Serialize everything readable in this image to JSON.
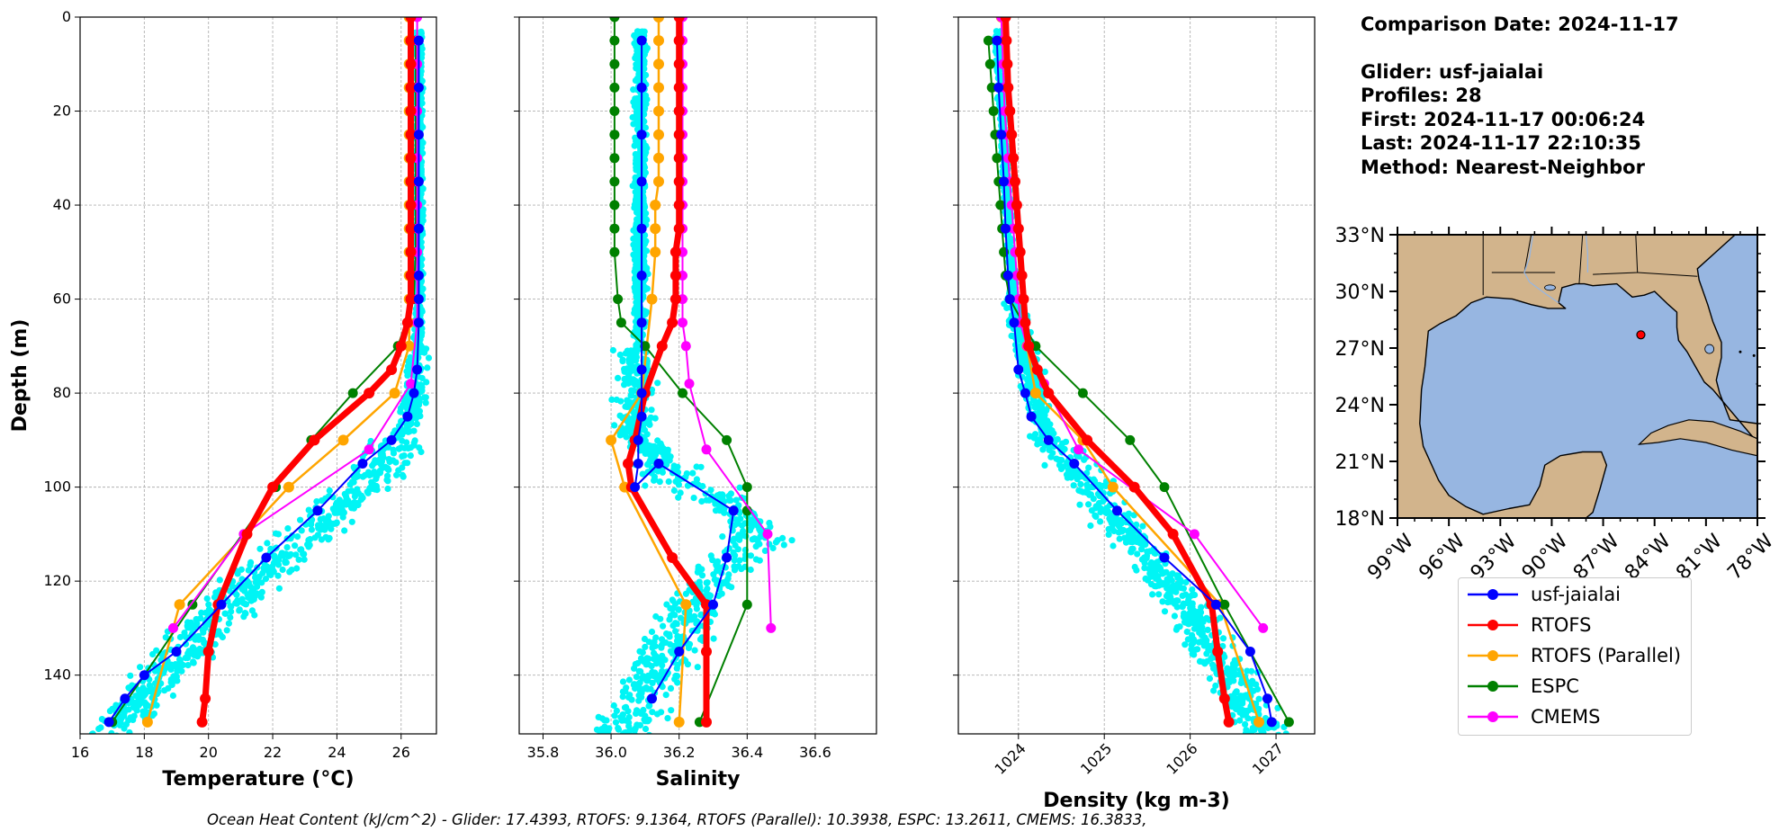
{
  "info": {
    "comparison_date": "Comparison Date: 2024-11-17",
    "glider": "Glider: usf-jaialai",
    "profiles": "Profiles: 28",
    "first": "First: 2024-11-17 00:06:24",
    "last": "Last: 2024-11-17 22:10:35",
    "method": "Method: Nearest-Neighbor"
  },
  "footer": "Ocean Heat Content (kJ/cm^2) - Glider: 17.4393,  RTOFS: 9.1364,  RTOFS (Parallel): 10.3938,  ESPC: 13.2611,  CMEMS: 16.3833,",
  "colors": {
    "glider_scatter": "#00f5f5",
    "usf_jaialai": "#0000ff",
    "rtofs": "#ff0000",
    "rtofs_parallel": "#ffa500",
    "espc": "#008000",
    "cmems": "#ff00ff",
    "land": "#d2b48c",
    "ocean": "#97b6e1"
  },
  "legend": [
    {
      "name": "usf-jaialai",
      "color": "#0000ff"
    },
    {
      "name": "RTOFS",
      "color": "#ff0000"
    },
    {
      "name": "RTOFS (Parallel)",
      "color": "#ffa500"
    },
    {
      "name": "ESPC",
      "color": "#008000"
    },
    {
      "name": "CMEMS",
      "color": "#ff00ff"
    }
  ],
  "chart_data": [
    {
      "type": "line",
      "xlabel": "Temperature (°C)",
      "ylabel": "Depth (m)",
      "xlim": [
        16.0,
        27.1
      ],
      "ylim": [
        152.5,
        0
      ],
      "xticks": [
        "16",
        "18",
        "20",
        "22",
        "24",
        "26"
      ],
      "xtick_values": [
        16,
        18,
        20,
        22,
        24,
        26
      ],
      "yticks": [
        "0",
        "20",
        "40",
        "60",
        "80",
        "100",
        "120",
        "140"
      ],
      "ytick_values": [
        0,
        20,
        40,
        60,
        80,
        100,
        120,
        140
      ],
      "grid": true,
      "series": [
        {
          "name": "usf-jaialai",
          "x": [
            26.55,
            26.55,
            26.55,
            26.55,
            26.55,
            26.55,
            26.55,
            26.55,
            26.5,
            26.4,
            26.2,
            25.7,
            24.8,
            23.4,
            21.8,
            20.4,
            19.0,
            18.0,
            17.4,
            16.9
          ],
          "y": [
            5,
            15,
            25,
            35,
            45,
            55,
            60,
            65,
            75,
            80,
            85,
            90,
            95,
            105,
            115,
            125,
            135,
            140,
            145,
            150
          ]
        },
        {
          "name": "RTOFS",
          "x": [
            26.3,
            26.3,
            26.3,
            26.3,
            26.3,
            26.3,
            26.3,
            26.3,
            26.3,
            26.3,
            26.3,
            26.3,
            26.3,
            26.2,
            26.0,
            25.7,
            25.0,
            23.3,
            22.0,
            21.2,
            20.3,
            20.0,
            19.9,
            19.8
          ],
          "y": [
            0,
            5,
            10,
            15,
            20,
            25,
            30,
            35,
            40,
            45,
            50,
            55,
            60,
            65,
            70,
            75,
            80,
            90,
            100,
            110,
            125,
            135,
            145,
            150
          ]
        },
        {
          "name": "RTOFS (Parallel)",
          "x": [
            26.25,
            26.25,
            26.25,
            26.25,
            26.25,
            26.25,
            26.25,
            26.25,
            26.25,
            26.25,
            26.25,
            26.25,
            26.25,
            26.25,
            26.25,
            25.8,
            24.2,
            22.5,
            19.1,
            18.1
          ],
          "y": [
            0,
            5,
            10,
            15,
            20,
            25,
            30,
            35,
            40,
            45,
            50,
            55,
            60,
            65,
            70,
            80,
            90,
            100,
            125,
            150
          ]
        },
        {
          "name": "ESPC",
          "x": [
            26.45,
            26.45,
            26.45,
            26.45,
            26.45,
            26.45,
            26.45,
            26.45,
            26.45,
            26.45,
            26.4,
            25.9,
            24.5,
            23.2,
            22.1,
            19.5,
            17.0
          ],
          "y": [
            5,
            10,
            15,
            20,
            25,
            30,
            35,
            40,
            45,
            50,
            60,
            70,
            80,
            90,
            100,
            125,
            150
          ]
        },
        {
          "name": "CMEMS",
          "x": [
            26.5,
            26.5,
            26.5,
            26.5,
            26.5,
            26.5,
            26.5,
            26.5,
            26.5,
            26.5,
            26.5,
            26.5,
            26.5,
            26.5,
            26.3,
            25.0,
            21.1,
            18.9
          ],
          "y": [
            0,
            5,
            10,
            15,
            20,
            25,
            30,
            35,
            40,
            45,
            50,
            55,
            60,
            65,
            78,
            92,
            110,
            130
          ]
        }
      ]
    },
    {
      "type": "line",
      "xlabel": "Salinity",
      "xlim": [
        35.73,
        36.78
      ],
      "ylim": [
        152.5,
        0
      ],
      "xticks": [
        "35.8",
        "36.0",
        "36.2",
        "36.4",
        "36.6"
      ],
      "xtick_values": [
        35.8,
        36.0,
        36.2,
        36.4,
        36.6
      ],
      "grid": true,
      "series": [
        {
          "name": "usf-jaialai",
          "x": [
            36.09,
            36.09,
            36.09,
            36.09,
            36.09,
            36.09,
            36.09,
            36.09,
            36.09,
            36.09,
            36.08,
            36.08,
            36.07,
            36.14,
            36.36,
            36.34,
            36.3,
            36.2,
            36.12
          ],
          "y": [
            5,
            15,
            25,
            35,
            45,
            55,
            65,
            75,
            80,
            85,
            90,
            95,
            100,
            95,
            105,
            115,
            125,
            135,
            145
          ]
        },
        {
          "name": "RTOFS",
          "x": [
            36.2,
            36.2,
            36.2,
            36.2,
            36.2,
            36.2,
            36.2,
            36.2,
            36.2,
            36.2,
            36.19,
            36.19,
            36.19,
            36.18,
            36.15,
            36.1,
            36.07,
            36.05,
            36.06,
            36.18,
            36.28,
            36.28,
            36.28
          ],
          "y": [
            0,
            5,
            10,
            15,
            20,
            25,
            30,
            35,
            40,
            45,
            50,
            55,
            60,
            65,
            70,
            80,
            90,
            95,
            100,
            115,
            125,
            135,
            150
          ]
        },
        {
          "name": "RTOFS (Parallel)",
          "x": [
            36.14,
            36.14,
            36.14,
            36.14,
            36.14,
            36.14,
            36.14,
            36.14,
            36.13,
            36.13,
            36.13,
            36.12,
            36.09,
            36.0,
            36.04,
            36.22,
            36.2
          ],
          "y": [
            0,
            5,
            10,
            15,
            20,
            25,
            30,
            35,
            40,
            45,
            50,
            60,
            80,
            90,
            100,
            125,
            150
          ]
        },
        {
          "name": "ESPC",
          "x": [
            36.01,
            36.01,
            36.01,
            36.01,
            36.01,
            36.01,
            36.01,
            36.01,
            36.01,
            36.01,
            36.01,
            36.02,
            36.03,
            36.1,
            36.21,
            36.34,
            36.4,
            36.4,
            36.4,
            36.26
          ],
          "y": [
            0,
            5,
            10,
            15,
            20,
            25,
            30,
            35,
            40,
            45,
            50,
            60,
            65,
            70,
            80,
            90,
            100,
            105,
            125,
            150
          ]
        },
        {
          "name": "CMEMS",
          "x": [
            36.21,
            36.21,
            36.21,
            36.21,
            36.21,
            36.21,
            36.21,
            36.21,
            36.21,
            36.21,
            36.21,
            36.21,
            36.21,
            36.21,
            36.22,
            36.23,
            36.28,
            36.46,
            36.47
          ],
          "y": [
            0,
            5,
            10,
            15,
            20,
            25,
            30,
            35,
            40,
            45,
            50,
            55,
            60,
            65,
            70,
            78,
            92,
            110,
            130
          ]
        }
      ]
    },
    {
      "type": "line",
      "xlabel": "Density (kg m-3)",
      "xlim": [
        1023.3,
        1027.45
      ],
      "ylim": [
        152.5,
        0
      ],
      "xticks": [
        "1024",
        "1025",
        "1026",
        "1027"
      ],
      "xtick_values": [
        1024,
        1025,
        1026,
        1027
      ],
      "grid": true,
      "series": [
        {
          "name": "usf-jaialai",
          "x": [
            1023.75,
            1023.77,
            1023.8,
            1023.83,
            1023.85,
            1023.88,
            1023.9,
            1023.95,
            1024.0,
            1024.08,
            1024.15,
            1024.35,
            1024.65,
            1025.15,
            1025.7,
            1026.3,
            1026.7,
            1026.9,
            1026.95
          ],
          "y": [
            5,
            15,
            25,
            35,
            45,
            55,
            60,
            65,
            75,
            80,
            85,
            90,
            95,
            105,
            115,
            125,
            135,
            145,
            150
          ]
        },
        {
          "name": "RTOFS",
          "x": [
            1023.85,
            1023.86,
            1023.87,
            1023.88,
            1023.9,
            1023.92,
            1023.94,
            1023.96,
            1023.98,
            1024.0,
            1024.02,
            1024.04,
            1024.06,
            1024.08,
            1024.12,
            1024.22,
            1024.35,
            1024.8,
            1025.35,
            1025.8,
            1026.25,
            1026.32,
            1026.4,
            1026.45
          ],
          "y": [
            0,
            5,
            10,
            15,
            20,
            25,
            30,
            35,
            40,
            45,
            50,
            55,
            60,
            65,
            70,
            75,
            80,
            90,
            100,
            110,
            125,
            135,
            145,
            150
          ]
        },
        {
          "name": "RTOFS (Parallel)",
          "x": [
            1023.8,
            1023.82,
            1023.84,
            1023.86,
            1023.88,
            1023.9,
            1023.92,
            1023.94,
            1023.96,
            1023.98,
            1024.0,
            1024.02,
            1024.04,
            1024.06,
            1024.1,
            1024.2,
            1024.75,
            1025.1,
            1026.35,
            1026.8
          ],
          "y": [
            0,
            5,
            10,
            15,
            20,
            25,
            30,
            35,
            40,
            45,
            50,
            55,
            60,
            65,
            70,
            80,
            90,
            100,
            125,
            150
          ]
        },
        {
          "name": "ESPC",
          "x": [
            1023.65,
            1023.67,
            1023.69,
            1023.71,
            1023.73,
            1023.75,
            1023.77,
            1023.79,
            1023.81,
            1023.83,
            1023.85,
            1023.9,
            1024.2,
            1024.75,
            1025.3,
            1025.7,
            1026.4,
            1027.15
          ],
          "y": [
            5,
            10,
            15,
            20,
            25,
            30,
            35,
            40,
            45,
            50,
            55,
            60,
            70,
            80,
            90,
            100,
            125,
            150
          ]
        },
        {
          "name": "CMEMS",
          "x": [
            1023.8,
            1023.81,
            1023.82,
            1023.83,
            1023.84,
            1023.86,
            1023.88,
            1023.9,
            1023.92,
            1023.94,
            1023.96,
            1023.98,
            1024.0,
            1024.02,
            1024.1,
            1024.3,
            1024.7,
            1026.05,
            1026.85
          ],
          "y": [
            0,
            5,
            10,
            15,
            20,
            25,
            30,
            35,
            40,
            45,
            50,
            55,
            60,
            65,
            70,
            78,
            92,
            110,
            130
          ]
        }
      ]
    }
  ],
  "map": {
    "lon_ticks": [
      "99°W",
      "96°W",
      "93°W",
      "90°W",
      "87°W",
      "84°W",
      "81°W",
      "78°W"
    ],
    "lon_values": [
      -99,
      -96,
      -93,
      -90,
      -87,
      -84,
      -81,
      -78
    ],
    "lat_ticks": [
      "33°N",
      "30°N",
      "27°N",
      "24°N",
      "21°N",
      "18°N"
    ],
    "lat_values": [
      33,
      30,
      27,
      24,
      21,
      18
    ],
    "extent": [
      -99,
      -78,
      18,
      33
    ],
    "glider_location": {
      "lon": -84.8,
      "lat": 27.7
    }
  }
}
